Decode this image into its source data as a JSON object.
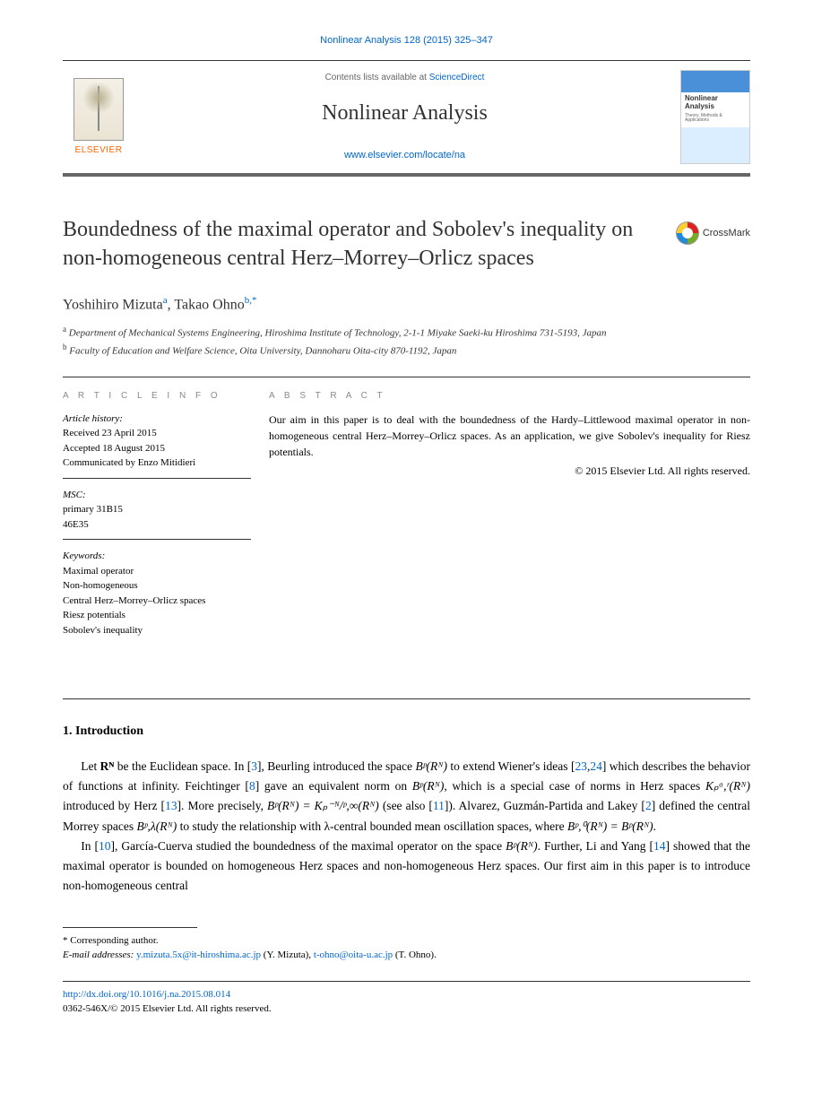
{
  "citation": "Nonlinear Analysis 128 (2015) 325–347",
  "header": {
    "contents_prefix": "Contents lists available at ",
    "contents_link": "ScienceDirect",
    "journal": "Nonlinear Analysis",
    "url": "www.elsevier.com/locate/na",
    "elsevier": "ELSEVIER",
    "cover_title": "Nonlinear Analysis",
    "cover_sub": "Theory, Methods & Applications"
  },
  "title": "Boundedness of the maximal operator and Sobolev's inequality on non-homogeneous central Herz–Morrey–Orlicz spaces",
  "crossmark": "CrossMark",
  "authors_html": "Yoshihiro Mizuta<sup>a</sup>, Takao Ohno<sup>b,*</sup>",
  "affiliations": {
    "a": "Department of Mechanical Systems Engineering, Hiroshima Institute of Technology, 2-1-1 Miyake Saeki-ku Hiroshima 731-5193, Japan",
    "b": "Faculty of Education and Welfare Science, Oita University, Dannoharu Oita-city 870-1192, Japan"
  },
  "info": {
    "label": "A R T I C L E   I N F O",
    "history_label": "Article history:",
    "received": "Received 23 April 2015",
    "accepted": "Accepted 18 August 2015",
    "communicated": "Communicated by Enzo Mitidieri",
    "msc_label": "MSC:",
    "msc1": "primary 31B15",
    "msc2": "46E35",
    "keywords_label": "Keywords:",
    "kw": [
      "Maximal operator",
      "Non-homogeneous",
      "Central Herz–Morrey–Orlicz spaces",
      "Riesz potentials",
      "Sobolev's inequality"
    ]
  },
  "abstract": {
    "label": "A B S T R A C T",
    "text": "Our aim in this paper is to deal with the boundedness of the Hardy–Littlewood maximal operator in non-homogeneous central Herz–Morrey–Orlicz spaces. As an application, we give Sobolev's inequality for Riesz potentials.",
    "copyright": "© 2015 Elsevier Ltd. All rights reserved."
  },
  "section1": {
    "heading": "1. Introduction",
    "p1_a": "Let ",
    "p1_b": " be the Euclidean space. In [",
    "p1_c": "], Beurling introduced the space ",
    "p1_d": " to extend Wiener's ideas [",
    "p1_e": "] which describes the behavior of functions at infinity. Feichtinger [",
    "p1_f": "] gave an equivalent norm on ",
    "p1_g": ", which is a special case of norms in Herz spaces ",
    "p1_h": " introduced by Herz [",
    "p1_i": "]. More precisely, ",
    "p1_j": " (see also [",
    "p1_k": "]). Alvarez, Guzmán-Partida and Lakey [",
    "p1_l": "] defined the central Morrey spaces ",
    "p1_m": " to study the relationship with λ-central bounded mean oscillation spaces, where ",
    "p1_n": ".",
    "refs1": {
      "r3": "3",
      "r23": "23",
      "r24": "24",
      "r8": "8",
      "r13": "13",
      "r11": "11",
      "r2": "2"
    },
    "p2_a": "In [",
    "p2_b": "], García-Cuerva studied the boundedness of the maximal operator on the space ",
    "p2_c": ". Further, Li and Yang [",
    "p2_d": "] showed that the maximal operator is bounded on homogeneous Herz spaces and non-homogeneous Herz spaces. Our first aim in this paper is to introduce non-homogeneous central",
    "refs2": {
      "r10": "10",
      "r14": "14"
    }
  },
  "math": {
    "RN": "Rᴺ",
    "Bp": "Bᵖ(Rᴺ)",
    "Kpar": "Kₚᵅ,ʳ(Rᴺ)",
    "eq": "Bᵖ(Rᴺ) = Kₚ⁻ᴺ/ᵖ,∞(Rᴺ)",
    "Bpl": "Bᵖ,λ(Rᴺ)",
    "Bp0": "Bᵖ,⁰(Rᴺ) = Bᵖ(Rᴺ)"
  },
  "footnotes": {
    "corr": "* Corresponding author.",
    "email_label": "E-mail addresses: ",
    "email1": "y.mizuta.5x@it-hiroshima.ac.jp",
    "email1_who": " (Y. Mizuta), ",
    "email2": "t-ohno@oita-u.ac.jp",
    "email2_who": " (T. Ohno)."
  },
  "bottom": {
    "doi": "http://dx.doi.org/10.1016/j.na.2015.08.014",
    "issn": "0362-546X/© 2015 Elsevier Ltd. All rights reserved."
  },
  "colors": {
    "link": "#0066cc",
    "orange": "#ff6600",
    "text": "#333333",
    "rule": "#333333"
  }
}
